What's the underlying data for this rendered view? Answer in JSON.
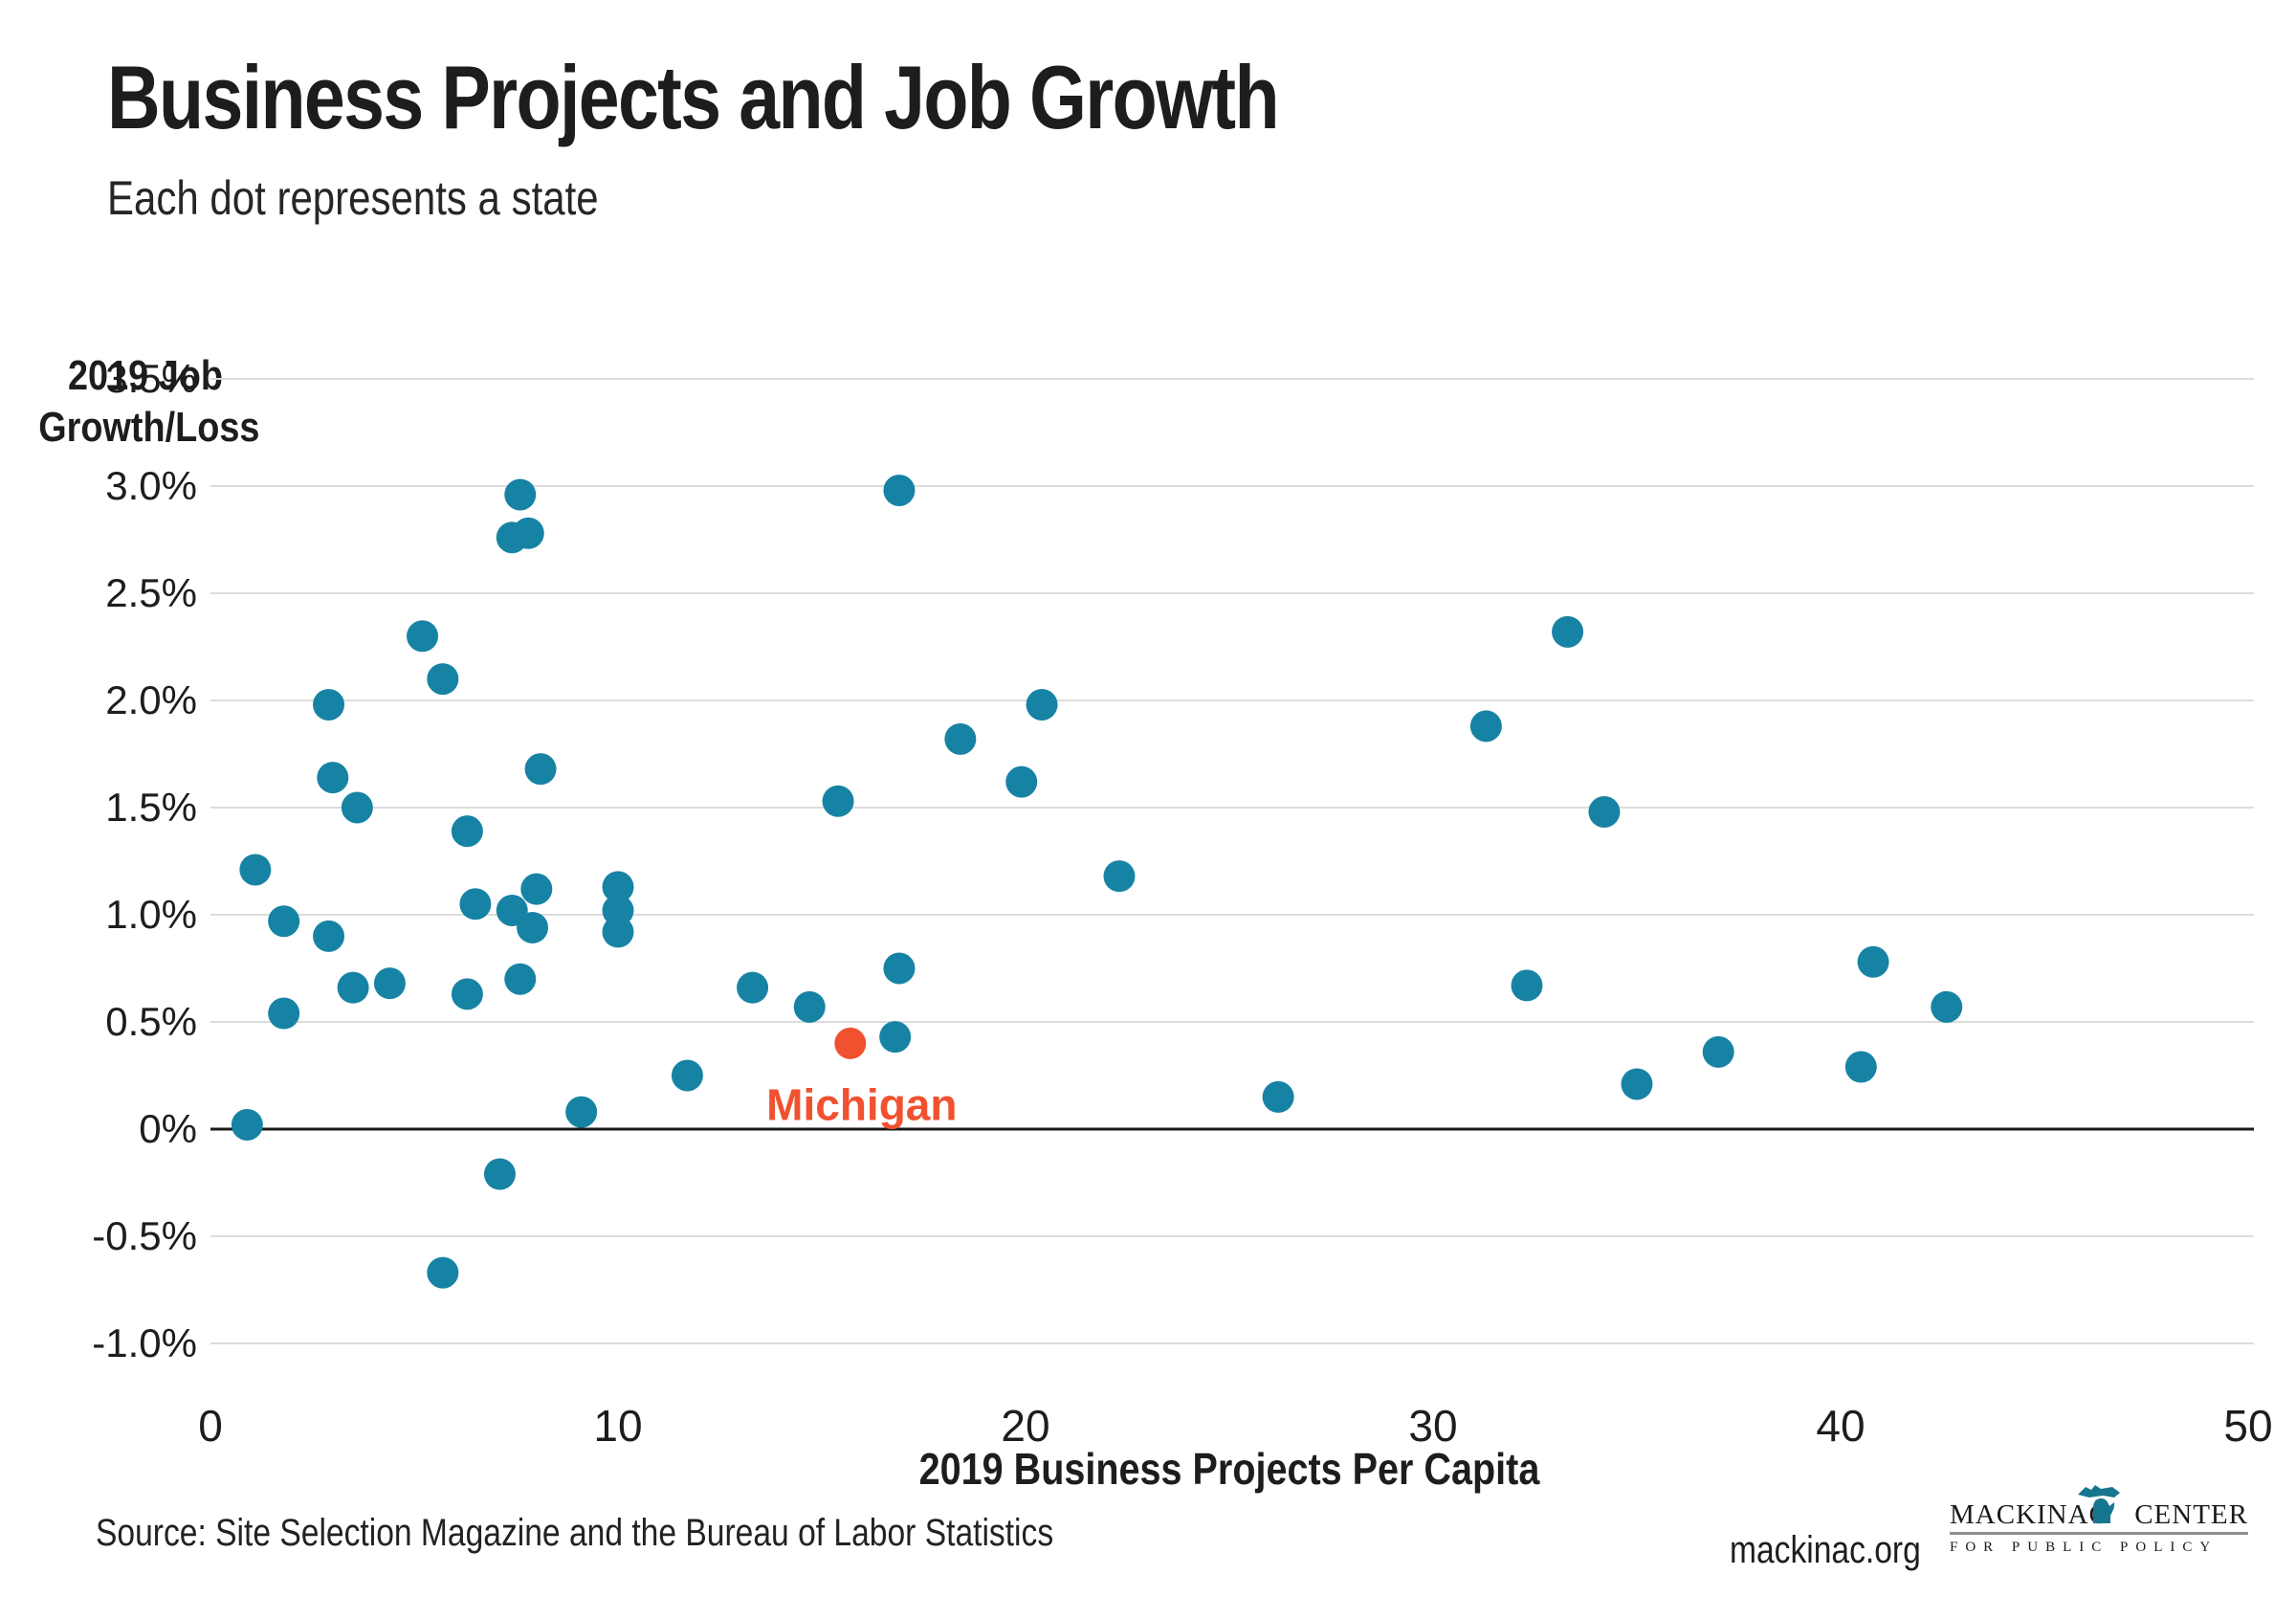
{
  "header": {
    "title": "Business Projects and Job Growth",
    "subtitle": "Each dot represents a state"
  },
  "y_axis": {
    "title_lines": [
      "2019 Job",
      "Growth/Loss"
    ],
    "tick_labels": [
      "3.5%",
      "3.0%",
      "2.5%",
      "2.0%",
      "1.5%",
      "1.0%",
      "0.5%",
      "0%",
      "-0.5%",
      "-1.0%"
    ],
    "tick_values": [
      3.5,
      3.0,
      2.5,
      2.0,
      1.5,
      1.0,
      0.5,
      0,
      -0.5,
      -1.0
    ]
  },
  "x_axis": {
    "title": "2019 Business Projects Per Capita",
    "tick_labels": [
      "0",
      "10",
      "20",
      "30",
      "40",
      "50"
    ],
    "tick_values": [
      0,
      10,
      20,
      30,
      40,
      50
    ]
  },
  "annotation": {
    "michigan_label": "Michigan"
  },
  "footer": {
    "source": "Source: Site Selection Magazine and the Bureau of Labor Statistics",
    "website": "mackinac.org",
    "logo_line1_left": "MACKINAC",
    "logo_line1_right": "CENTER",
    "logo_line2": "FOR PUBLIC POLICY"
  },
  "colors": {
    "dot": "#1783A4",
    "highlight": "#F0512F",
    "gridline": "#DCDCDC",
    "zero_line": "#1A1A1A",
    "tick_text": "#1D1D1D",
    "logo_teal": "#17768F"
  },
  "chart_data": {
    "type": "scatter",
    "title": "Business Projects and Job Growth",
    "subtitle": "Each dot represents a state",
    "xlabel": "2019 Business Projects Per Capita",
    "ylabel": "2019 Job Growth/Loss",
    "xlim": [
      0,
      50
    ],
    "ylim": [
      -1.0,
      3.5
    ],
    "x_ticks": [
      0,
      10,
      20,
      30,
      40,
      50
    ],
    "y_ticks": [
      3.5,
      3.0,
      2.5,
      2.0,
      1.5,
      1.0,
      0.5,
      0,
      -0.5,
      -1.0
    ],
    "grid": "horizontal gridlines, solid black line at y=0",
    "legend_position": "none",
    "series": [
      {
        "name": "States",
        "color": "#1783A4",
        "points": [
          [
            0.9,
            0.02
          ],
          [
            1.1,
            1.21
          ],
          [
            1.8,
            0.97
          ],
          [
            1.8,
            0.54
          ],
          [
            2.9,
            1.98
          ],
          [
            2.9,
            0.9
          ],
          [
            3.0,
            1.64
          ],
          [
            3.5,
            0.66
          ],
          [
            3.6,
            1.5
          ],
          [
            4.4,
            0.68
          ],
          [
            5.2,
            2.3
          ],
          [
            5.7,
            2.1
          ],
          [
            5.7,
            -0.67
          ],
          [
            6.3,
            1.39
          ],
          [
            6.3,
            0.63
          ],
          [
            6.5,
            1.05
          ],
          [
            7.1,
            -0.21
          ],
          [
            7.4,
            1.02
          ],
          [
            7.4,
            2.76
          ],
          [
            7.6,
            2.96
          ],
          [
            7.8,
            2.78
          ],
          [
            7.6,
            0.7
          ],
          [
            7.9,
            0.94
          ],
          [
            8.0,
            1.12
          ],
          [
            8.1,
            1.68
          ],
          [
            9.1,
            0.08
          ],
          [
            10.0,
            1.13
          ],
          [
            10.0,
            1.02
          ],
          [
            10.0,
            0.92
          ],
          [
            11.7,
            0.25
          ],
          [
            13.3,
            0.66
          ],
          [
            14.7,
            0.57
          ],
          [
            15.4,
            1.53
          ],
          [
            16.8,
            0.43
          ],
          [
            16.9,
            0.75
          ],
          [
            16.9,
            2.98
          ],
          [
            18.4,
            1.82
          ],
          [
            19.9,
            1.62
          ],
          [
            20.4,
            1.98
          ],
          [
            22.3,
            1.18
          ],
          [
            26.2,
            0.15
          ],
          [
            31.3,
            1.88
          ],
          [
            32.3,
            0.67
          ],
          [
            33.3,
            2.32
          ],
          [
            34.2,
            1.48
          ],
          [
            35.0,
            0.21
          ],
          [
            37.0,
            0.36
          ],
          [
            40.5,
            0.29
          ],
          [
            40.8,
            0.78
          ],
          [
            42.6,
            0.57
          ]
        ]
      },
      {
        "name": "Michigan",
        "color": "#F0512F",
        "label": "Michigan",
        "points": [
          [
            15.7,
            0.4
          ]
        ]
      }
    ]
  }
}
